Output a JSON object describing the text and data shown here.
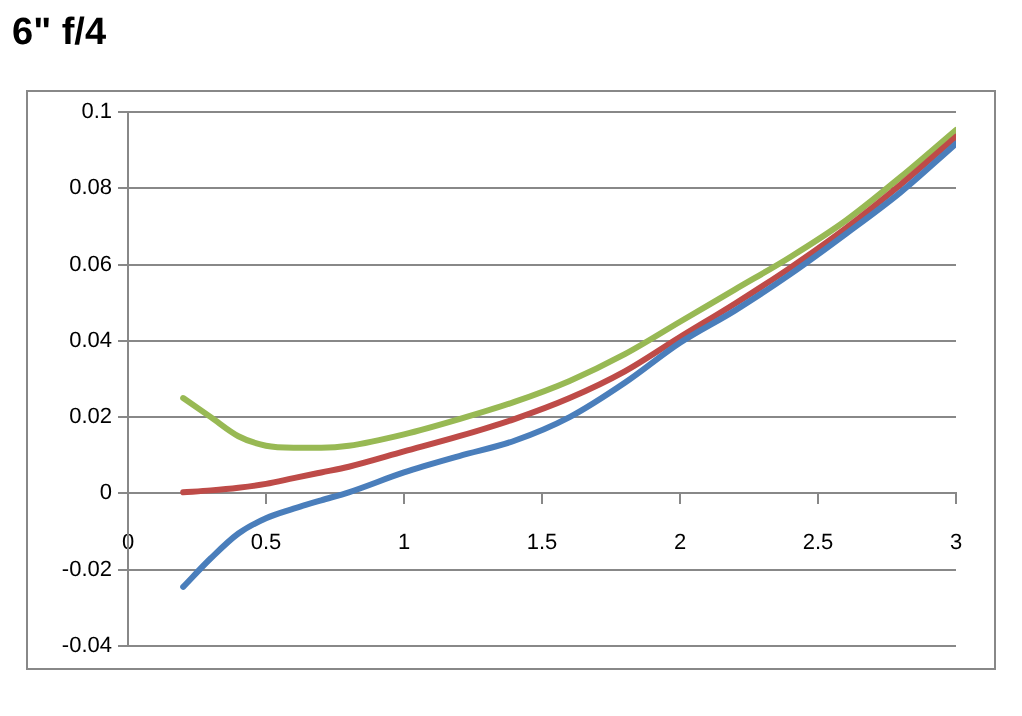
{
  "chart_data": {
    "type": "line",
    "title": "6\" f/4",
    "x": [
      0.2,
      0.3,
      0.4,
      0.5,
      0.6,
      0.7,
      0.8,
      1.0,
      1.2,
      1.4,
      1.6,
      1.8,
      2.0,
      2.2,
      2.4,
      2.6,
      2.8,
      3.0
    ],
    "series": [
      {
        "color": "#4a7ebb",
        "values": [
          -0.0245,
          -0.017,
          -0.0105,
          -0.0065,
          -0.004,
          -0.0018,
          0.0003,
          0.0055,
          0.0098,
          0.0138,
          0.02,
          0.029,
          0.0395,
          0.048,
          0.0575,
          0.068,
          0.079,
          0.0917
        ]
      },
      {
        "color": "#be4b48",
        "values": [
          0.0003,
          0.0008,
          0.0015,
          0.0025,
          0.004,
          0.0055,
          0.007,
          0.011,
          0.015,
          0.0195,
          0.025,
          0.032,
          0.041,
          0.0498,
          0.0592,
          0.0695,
          0.081,
          0.0935
        ]
      },
      {
        "color": "#98b954",
        "values": [
          0.025,
          0.02,
          0.015,
          0.0125,
          0.012,
          0.012,
          0.0125,
          0.0155,
          0.0195,
          0.024,
          0.0295,
          0.0365,
          0.045,
          0.0535,
          0.062,
          0.0715,
          0.083,
          0.0953
        ]
      }
    ],
    "xlim": [
      0,
      3
    ],
    "xticks": [
      0,
      0.5,
      1,
      1.5,
      2,
      2.5,
      3
    ],
    "ylim": [
      -0.04,
      0.1
    ],
    "yticks": [
      -0.04,
      -0.02,
      0,
      0.02,
      0.04,
      0.06,
      0.08,
      0.1
    ],
    "grid": "y",
    "marker": "none",
    "line_style": "solid"
  }
}
